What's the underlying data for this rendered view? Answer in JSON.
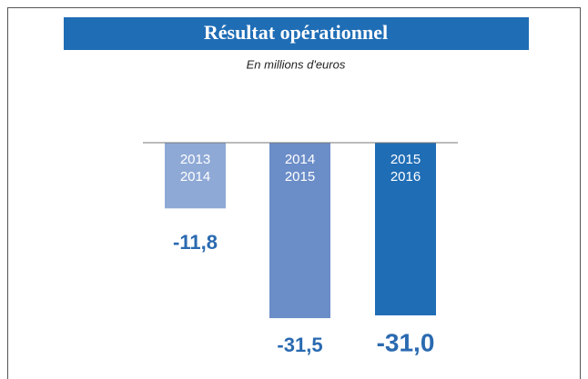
{
  "chart_data": {
    "type": "bar",
    "title": "Résultat opérationnel",
    "subtitle": "En millions d'euros",
    "categories": [
      [
        "2013",
        "2014"
      ],
      [
        "2014",
        "2015"
      ],
      [
        "2015",
        "2016"
      ]
    ],
    "values": [
      -11.8,
      -31.5,
      -31.0
    ],
    "value_labels": [
      "-11,8",
      "-31,5",
      "-31,0"
    ],
    "colors": [
      "#8fa9d6",
      "#6b8dc8",
      "#1f6db5"
    ],
    "ylim": [
      -35,
      0
    ]
  }
}
